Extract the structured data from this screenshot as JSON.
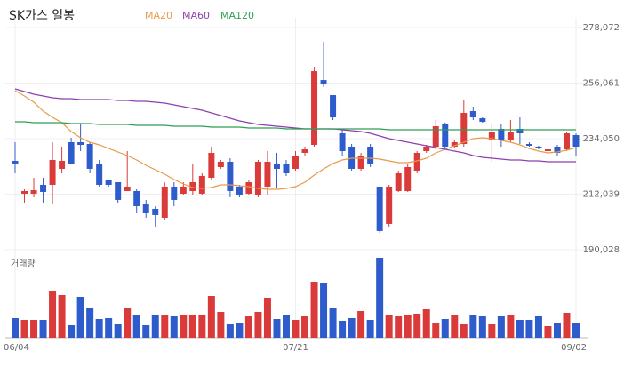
{
  "chart_data": {
    "type": "candlestick",
    "title": "SK가스 일봉",
    "volume_label": "거래량",
    "up_color": "#db3a3a",
    "down_color": "#2f5ccc",
    "categories": [
      "06/04",
      null,
      null,
      null,
      null,
      null,
      null,
      null,
      null,
      null,
      null,
      null,
      null,
      null,
      null,
      null,
      null,
      null,
      null,
      null,
      null,
      null,
      null,
      null,
      null,
      null,
      null,
      null,
      null,
      null,
      "07/21",
      null,
      null,
      null,
      null,
      null,
      null,
      null,
      null,
      null,
      null,
      null,
      null,
      null,
      null,
      null,
      null,
      null,
      null,
      null,
      null,
      null,
      null,
      null,
      null,
      null,
      null,
      null,
      null,
      null,
      "09/02"
    ],
    "open": [
      225248,
      212224,
      212224,
      215744,
      215744,
      222080,
      232640,
      232640,
      231936,
      223840,
      217504,
      216800,
      213280,
      213280,
      208000,
      206240,
      202720,
      215040,
      212224,
      213280,
      212224,
      218560,
      222784,
      224896,
      215040,
      212224,
      211520,
      215040,
      223840,
      223840,
      222080,
      228416,
      231584,
      257280,
      251296,
      236160,
      230880,
      222080,
      230880,
      215040,
      200256,
      213280,
      213280,
      221376,
      229120,
      230880,
      239680,
      230880,
      231936,
      244960,
      242144,
      233344,
      237920,
      233344,
      237920,
      231936,
      230880,
      229120,
      230880,
      229824,
      235456
    ],
    "high": [
      232640,
      213984,
      218560,
      218560,
      232640,
      230880,
      234400,
      239680,
      232640,
      225600,
      217856,
      216800,
      229120,
      213984,
      209760,
      207296,
      216800,
      216800,
      216800,
      223840,
      220320,
      230880,
      225600,
      226304,
      215744,
      217504,
      225600,
      229120,
      228416,
      225600,
      229120,
      230880,
      262560,
      272416,
      251296,
      237920,
      231936,
      228416,
      231936,
      215040,
      215744,
      221376,
      223840,
      229120,
      231584,
      241440,
      240384,
      233344,
      249536,
      246720,
      242496,
      239680,
      239680,
      241440,
      242496,
      232640,
      231232,
      230880,
      231584,
      236864,
      236160
    ],
    "low": [
      220320,
      208704,
      210816,
      208704,
      208000,
      220320,
      223840,
      229120,
      220320,
      215040,
      215040,
      208704,
      213280,
      204480,
      202720,
      199200,
      201664,
      207296,
      211520,
      211520,
      211520,
      217856,
      222080,
      210816,
      210816,
      211520,
      210816,
      211520,
      214336,
      219264,
      221376,
      227360,
      230880,
      254464,
      241440,
      227360,
      221376,
      221376,
      222784,
      196736,
      199200,
      212928,
      212928,
      220320,
      228416,
      229824,
      229824,
      230176,
      230880,
      241440,
      240384,
      224896,
      230880,
      232640,
      231936,
      230880,
      229824,
      228416,
      227360,
      229120,
      227360
    ],
    "close": [
      223840,
      213280,
      213632,
      212928,
      225600,
      225248,
      223840,
      231584,
      222080,
      215744,
      215744,
      209760,
      215040,
      207296,
      204480,
      203776,
      215040,
      209760,
      215040,
      216800,
      219264,
      228416,
      224896,
      213280,
      211520,
      216800,
      224896,
      224896,
      222080,
      220320,
      227360,
      229824,
      260800,
      255520,
      242496,
      229120,
      222080,
      227360,
      223840,
      197440,
      215040,
      220320,
      222784,
      228416,
      230880,
      238976,
      230880,
      232640,
      244256,
      242496,
      240736,
      236864,
      233344,
      236864,
      236160,
      231232,
      230176,
      229824,
      228416,
      236160,
      230880
    ],
    "volume": [
      22,
      20,
      20,
      20,
      53,
      48,
      14,
      46,
      33,
      21,
      22,
      15,
      33,
      26,
      14,
      26,
      26,
      24,
      26,
      25,
      25,
      47,
      29,
      15,
      16,
      24,
      29,
      45,
      21,
      25,
      20,
      24,
      63,
      62,
      33,
      19,
      22,
      30,
      20,
      90,
      26,
      24,
      25,
      27,
      32,
      17,
      21,
      25,
      15,
      26,
      24,
      15,
      24,
      25,
      20,
      20,
      24,
      13,
      17,
      28,
      16
    ],
    "series": [
      {
        "name": "MA20",
        "color": "#e89a4a",
        "values": [
          253056,
          250944,
          248480,
          244960,
          242496,
          240384,
          236864,
          234400,
          232640,
          231584,
          230176,
          228768,
          227360,
          225600,
          223488,
          221728,
          219968,
          217856,
          216096,
          214688,
          214336,
          214688,
          215744,
          215744,
          215392,
          215040,
          214336,
          213984,
          213984,
          214336,
          215040,
          216800,
          219616,
          222080,
          224192,
          225600,
          226304,
          226304,
          226304,
          225952,
          225248,
          224544,
          224544,
          225248,
          226304,
          228416,
          229824,
          231232,
          232640,
          234048,
          234400,
          234048,
          233344,
          232640,
          231584,
          230176,
          229120,
          228416,
          228768,
          229472,
          230528
        ]
      },
      {
        "name": "MA60",
        "color": "#8e3fae",
        "values": [
          253760,
          252704,
          251648,
          250944,
          250240,
          249888,
          249888,
          249536,
          249536,
          249536,
          249536,
          249184,
          249184,
          248832,
          248832,
          248480,
          248128,
          247424,
          246720,
          246016,
          245312,
          244256,
          243200,
          242144,
          241088,
          240384,
          239680,
          239328,
          238976,
          238624,
          238272,
          237920,
          237920,
          237920,
          237920,
          237568,
          237216,
          236864,
          236160,
          235104,
          234048,
          233344,
          232640,
          231936,
          231232,
          230528,
          229824,
          229120,
          228416,
          227360,
          226656,
          226304,
          225952,
          225600,
          225600,
          225248,
          225248,
          224896,
          224896,
          224896,
          224896
        ]
      },
      {
        "name": "MA120",
        "color": "#2e9e55",
        "values": [
          240736,
          240736,
          240384,
          240384,
          240384,
          240384,
          240032,
          240032,
          240032,
          239680,
          239680,
          239680,
          239680,
          239328,
          239328,
          239328,
          239328,
          238976,
          238976,
          238976,
          238976,
          238624,
          238624,
          238624,
          238624,
          238272,
          238272,
          238272,
          238272,
          237920,
          237920,
          237920,
          237920,
          237920,
          237920,
          237920,
          237920,
          237920,
          237920,
          237920,
          237568,
          237568,
          237568,
          237568,
          237568,
          237568,
          237568,
          237568,
          237568,
          237568,
          237568,
          237568,
          237568,
          237568,
          237568,
          237568,
          237568,
          237568,
          237568,
          237568,
          237568
        ]
      }
    ],
    "ylim": [
      190028,
      278072
    ],
    "yticks": [
      {
        "value": 190028,
        "label": "190,028"
      },
      {
        "value": 212039,
        "label": "212,039"
      },
      {
        "value": 234050,
        "label": "234,050"
      },
      {
        "value": 256061,
        "label": "256,061"
      },
      {
        "value": 278072,
        "label": "278,072"
      }
    ],
    "grid": true
  }
}
